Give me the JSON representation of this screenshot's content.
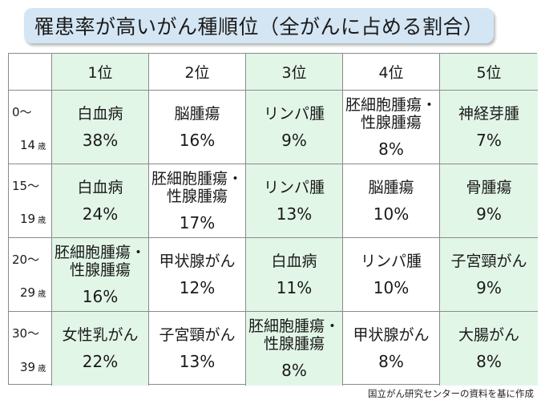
{
  "title": "罹患率が高いがん種順位（全がんに占める割合）",
  "source": "国立がん研究センターの資料を基に作成",
  "colors": {
    "title_bg": "#d4e6f4",
    "highlight_col": "#e2f6e7",
    "border": "#8a8a8a"
  },
  "chart_data": {
    "type": "table",
    "title": "罹患率が高いがん種順位（全がんに占める割合）",
    "columns": [
      "1位",
      "2位",
      "3位",
      "4位",
      "5位"
    ],
    "rows": [
      {
        "age_from": "0～",
        "age_to": "14",
        "age_unit": "歳",
        "cells": [
          {
            "name": "白血病",
            "pct": "38%"
          },
          {
            "name": "脳腫瘍",
            "pct": "16%"
          },
          {
            "name": "リンパ腫",
            "pct": "9%"
          },
          {
            "name": "胚細胞腫瘍・\n性腺腫瘍",
            "pct": "8%"
          },
          {
            "name": "神経芽腫",
            "pct": "7%"
          }
        ]
      },
      {
        "age_from": "15～",
        "age_to": "19",
        "age_unit": "歳",
        "cells": [
          {
            "name": "白血病",
            "pct": "24%"
          },
          {
            "name": "胚細胞腫瘍・\n性腺腫瘍",
            "pct": "17%"
          },
          {
            "name": "リンパ腫",
            "pct": "13%"
          },
          {
            "name": "脳腫瘍",
            "pct": "10%"
          },
          {
            "name": "骨腫瘍",
            "pct": "9%"
          }
        ]
      },
      {
        "age_from": "20～",
        "age_to": "29",
        "age_unit": "歳",
        "cells": [
          {
            "name": "胚細胞腫瘍・\n性腺腫瘍",
            "pct": "16%"
          },
          {
            "name": "甲状腺がん",
            "pct": "12%"
          },
          {
            "name": "白血病",
            "pct": "11%"
          },
          {
            "name": "リンパ腫",
            "pct": "10%"
          },
          {
            "name": "子宮頸がん",
            "pct": "9%"
          }
        ]
      },
      {
        "age_from": "30～",
        "age_to": "39",
        "age_unit": "歳",
        "cells": [
          {
            "name": "女性乳がん",
            "pct": "22%"
          },
          {
            "name": "子宮頸がん",
            "pct": "13%"
          },
          {
            "name": "胚細胞腫瘍・\n性腺腫瘍",
            "pct": "8%"
          },
          {
            "name": "甲状腺がん",
            "pct": "8%"
          },
          {
            "name": "大腸がん",
            "pct": "8%"
          }
        ]
      }
    ]
  }
}
